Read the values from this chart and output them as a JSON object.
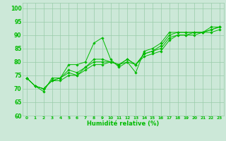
{
  "xlabel": "Humidité relative (%)",
  "xlim": [
    -0.5,
    23.5
  ],
  "ylim": [
    60,
    102
  ],
  "yticks": [
    60,
    65,
    70,
    75,
    80,
    85,
    90,
    95,
    100
  ],
  "xticks": [
    0,
    1,
    2,
    3,
    4,
    5,
    6,
    7,
    8,
    9,
    10,
    11,
    12,
    13,
    14,
    15,
    16,
    17,
    18,
    19,
    20,
    21,
    22,
    23
  ],
  "bg_color": "#cce8d8",
  "grid_color": "#99ccaa",
  "line_color": "#00bb00",
  "series": [
    [
      74,
      71,
      69,
      74,
      74,
      79,
      79,
      80,
      87,
      89,
      81,
      78,
      80,
      76,
      84,
      85,
      87,
      91,
      91,
      91,
      91,
      91,
      93,
      93
    ],
    [
      74,
      71,
      70,
      73,
      74,
      77,
      76,
      78,
      81,
      81,
      80,
      79,
      81,
      79,
      83,
      84,
      86,
      90,
      91,
      91,
      91,
      91,
      92,
      93
    ],
    [
      74,
      71,
      70,
      73,
      74,
      76,
      75,
      78,
      80,
      80,
      80,
      79,
      81,
      79,
      83,
      84,
      85,
      89,
      90,
      90,
      91,
      91,
      92,
      93
    ],
    [
      74,
      71,
      70,
      73,
      73,
      75,
      75,
      77,
      79,
      79,
      80,
      79,
      80,
      79,
      82,
      83,
      84,
      88,
      90,
      90,
      90,
      91,
      91,
      92
    ]
  ]
}
